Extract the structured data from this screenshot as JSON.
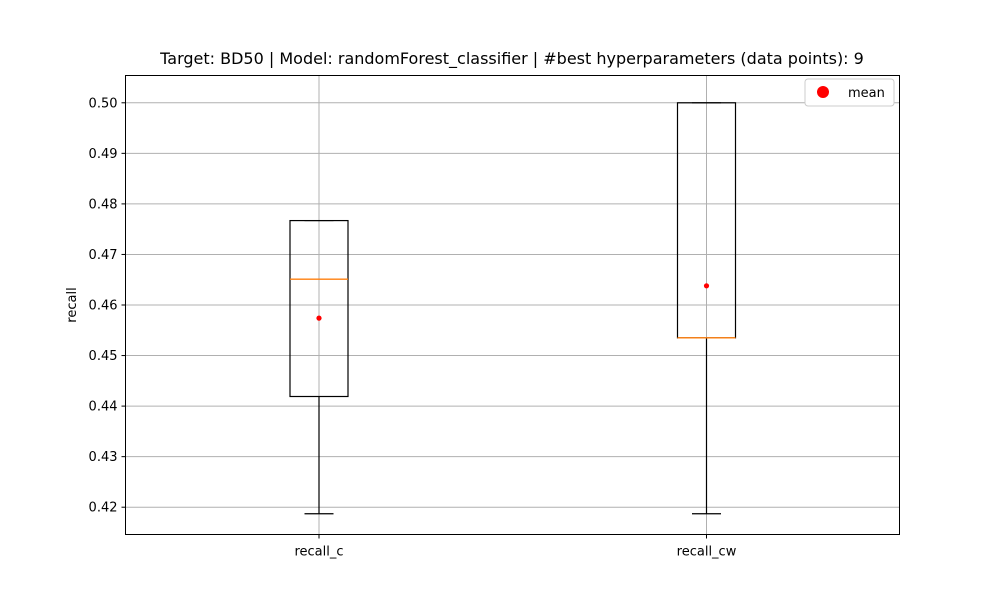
{
  "chart_data": {
    "type": "box",
    "title": "Target: BD50 | Model: randomForest_classifier | #best hyperparameters (data points): 9",
    "xlabel": "",
    "ylabel": "recall",
    "ylim": [
      0.4146,
      0.5054
    ],
    "yticks": [
      0.42,
      0.43,
      0.44,
      0.45,
      0.46,
      0.47,
      0.48,
      0.49,
      0.5
    ],
    "ytick_labels": [
      "0.42",
      "0.43",
      "0.44",
      "0.45",
      "0.46",
      "0.47",
      "0.48",
      "0.49",
      "0.50"
    ],
    "grid": true,
    "legend": {
      "entries": [
        "mean"
      ],
      "placement": "top-right"
    },
    "categories": [
      "recall_c",
      "recall_cw"
    ],
    "boxes": [
      {
        "category": "recall_c",
        "whisker_low": 0.4187,
        "q1": 0.4419,
        "median": 0.4651,
        "q3": 0.4767,
        "whisker_high": 0.4767,
        "mean": 0.4574
      },
      {
        "category": "recall_cw",
        "whisker_low": 0.4187,
        "q1": 0.4535,
        "median": 0.4535,
        "q3": 0.5,
        "whisker_high": 0.5,
        "mean": 0.4638
      }
    ],
    "colors": {
      "box": "#000000",
      "median": "#ff7f0e",
      "mean": "#ff0000",
      "grid": "#b0b0b0"
    }
  }
}
